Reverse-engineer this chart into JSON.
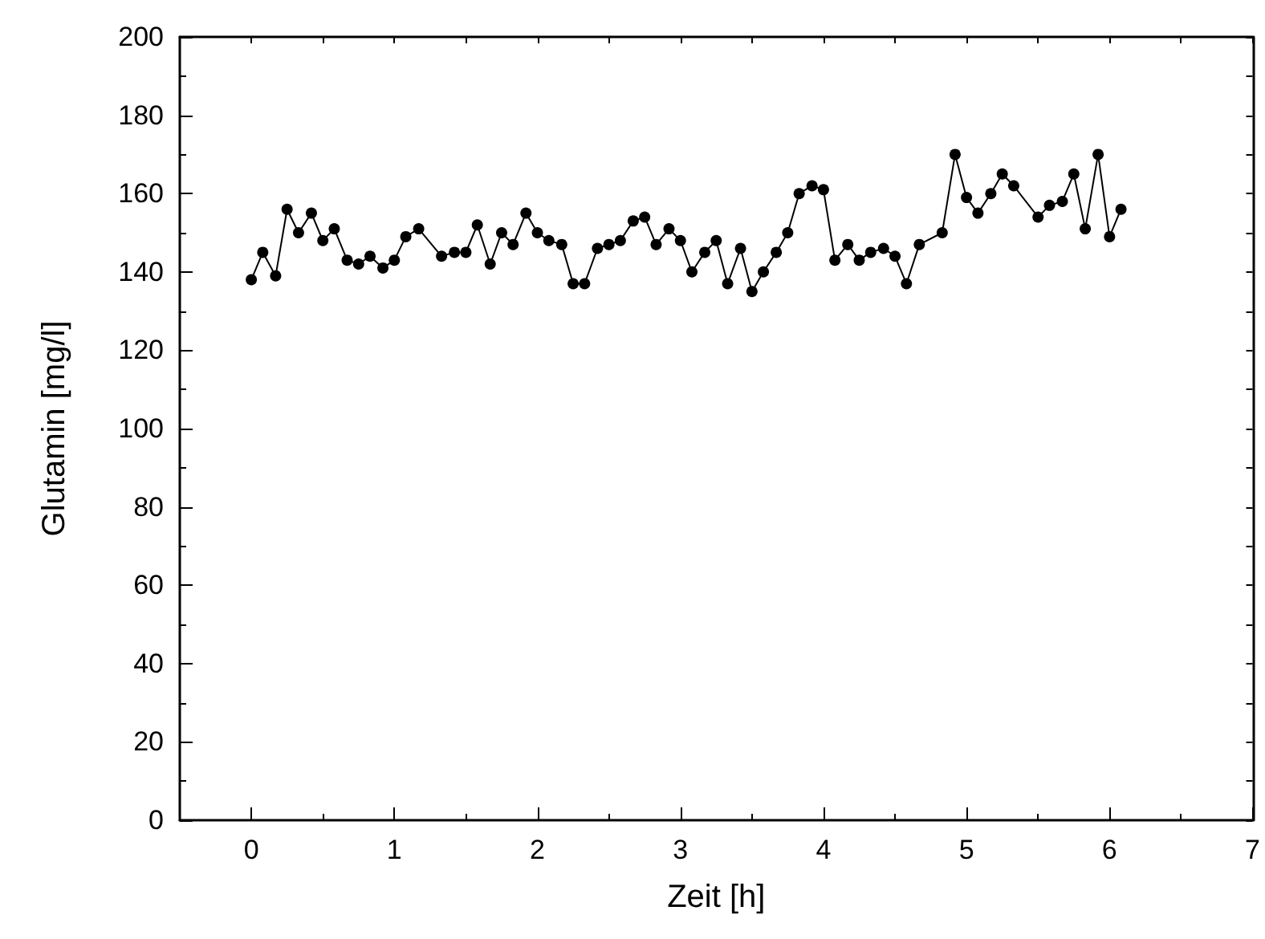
{
  "chart_data": {
    "type": "line",
    "xlabel": "Zeit [h]",
    "ylabel": "Glutamin [mg/l]",
    "xlim": [
      -0.5,
      7
    ],
    "xticks": [
      0,
      1,
      2,
      3,
      4,
      5,
      6,
      7
    ],
    "ylim": [
      0,
      200
    ],
    "yticks": [
      0,
      20,
      40,
      60,
      80,
      100,
      120,
      140,
      160,
      180,
      200
    ],
    "marker": "circle",
    "line_style": "solid",
    "x": [
      0,
      0.08,
      0.17,
      0.25,
      0.33,
      0.42,
      0.5,
      0.58,
      0.67,
      0.75,
      0.83,
      0.92,
      1,
      1.08,
      1.17,
      1.33,
      1.42,
      1.5,
      1.58,
      1.67,
      1.75,
      1.83,
      1.92,
      2,
      2.08,
      2.17,
      2.25,
      2.33,
      2.42,
      2.5,
      2.58,
      2.67,
      2.75,
      2.83,
      2.92,
      3,
      3.08,
      3.17,
      3.25,
      3.33,
      3.42,
      3.5,
      3.58,
      3.67,
      3.75,
      3.83,
      3.92,
      4,
      4.08,
      4.17,
      4.25,
      4.33,
      4.42,
      4.5,
      4.58,
      4.67,
      4.83,
      4.92,
      5,
      5.08,
      5.17,
      5.25,
      5.33,
      5.5,
      5.58,
      5.67,
      5.75,
      5.83,
      5.92,
      6,
      6.08
    ],
    "series": [
      {
        "color": "#000000",
        "values": [
          138,
          145,
          139,
          156,
          150,
          155,
          148,
          151,
          143,
          142,
          144,
          141,
          143,
          149,
          151,
          144,
          145,
          145,
          152,
          142,
          150,
          147,
          155,
          150,
          148,
          147,
          137,
          137,
          146,
          147,
          148,
          153,
          154,
          147,
          151,
          148,
          140,
          145,
          148,
          137,
          146,
          135,
          140,
          145,
          150,
          160,
          162,
          161,
          143,
          147,
          143,
          145,
          146,
          144,
          137,
          147,
          150,
          170,
          159,
          155,
          160,
          165,
          162,
          154,
          157,
          158,
          165,
          151,
          170,
          149,
          156
        ]
      }
    ]
  }
}
